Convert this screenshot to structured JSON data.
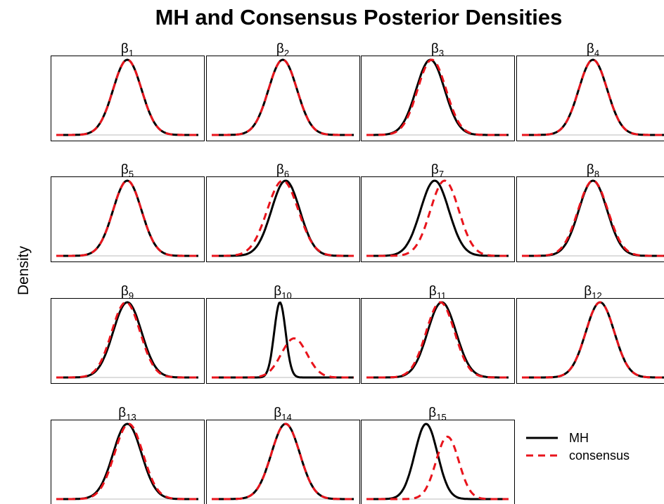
{
  "chart_data": {
    "type": "line",
    "title": "MH and Consensus Posterior Densities",
    "ylabel": "Density",
    "xlabel": "",
    "legend": {
      "position": "bottom-right"
    },
    "styles": {
      "mh": {
        "color": "#000000",
        "dash": "solid"
      },
      "consensus": {
        "color": "#e8141c",
        "dash": "dashed"
      },
      "baseline": "#bbbbbb"
    },
    "panels": [
      {
        "symbol": "β",
        "index": "1",
        "mh": {
          "mean": 0.5,
          "sd": 0.1
        },
        "consensus": {
          "mean": 0.5,
          "sd": 0.1
        }
      },
      {
        "symbol": "β",
        "index": "2",
        "mh": {
          "mean": 0.5,
          "sd": 0.1
        },
        "consensus": {
          "mean": 0.5,
          "sd": 0.1
        }
      },
      {
        "symbol": "β",
        "index": "3",
        "mh": {
          "mean": 0.45,
          "sd": 0.1
        },
        "consensus": {
          "mean": 0.46,
          "sd": 0.1
        }
      },
      {
        "symbol": "β",
        "index": "4",
        "mh": {
          "mean": 0.5,
          "sd": 0.1
        },
        "consensus": {
          "mean": 0.5,
          "sd": 0.1
        }
      },
      {
        "symbol": "β",
        "index": "5",
        "mh": {
          "mean": 0.5,
          "sd": 0.1
        },
        "consensus": {
          "mean": 0.5,
          "sd": 0.1
        }
      },
      {
        "symbol": "β",
        "index": "6",
        "mh": {
          "mean": 0.52,
          "sd": 0.1
        },
        "consensus": {
          "mean": 0.5,
          "sd": 0.11
        }
      },
      {
        "symbol": "β",
        "index": "7",
        "mh": {
          "mean": 0.48,
          "sd": 0.1
        },
        "consensus": {
          "mean": 0.55,
          "sd": 0.1
        }
      },
      {
        "symbol": "β",
        "index": "8",
        "mh": {
          "mean": 0.5,
          "sd": 0.1
        },
        "consensus": {
          "mean": 0.5,
          "sd": 0.105
        }
      },
      {
        "symbol": "β",
        "index": "9",
        "mh": {
          "mean": 0.5,
          "sd": 0.1
        },
        "consensus": {
          "mean": 0.49,
          "sd": 0.1
        }
      },
      {
        "symbol": "β",
        "index": "10",
        "mh": {
          "mean": 0.48,
          "sd": 0.04
        },
        "consensus": {
          "mean": 0.58,
          "sd": 0.09,
          "peak": 0.52
        }
      },
      {
        "symbol": "β",
        "index": "11",
        "mh": {
          "mean": 0.53,
          "sd": 0.1
        },
        "consensus": {
          "mean": 0.52,
          "sd": 0.1
        }
      },
      {
        "symbol": "β",
        "index": "12",
        "mh": {
          "mean": 0.55,
          "sd": 0.1
        },
        "consensus": {
          "mean": 0.55,
          "sd": 0.1
        }
      },
      {
        "symbol": "β",
        "index": "13",
        "mh": {
          "mean": 0.5,
          "sd": 0.1
        },
        "consensus": {
          "mean": 0.51,
          "sd": 0.1
        }
      },
      {
        "symbol": "β",
        "index": "14",
        "mh": {
          "mean": 0.52,
          "sd": 0.1
        },
        "consensus": {
          "mean": 0.52,
          "sd": 0.1
        }
      },
      {
        "symbol": "β",
        "index": "15",
        "mh": {
          "mean": 0.42,
          "sd": 0.08
        },
        "consensus": {
          "mean": 0.57,
          "sd": 0.08,
          "peak": 0.83
        }
      }
    ]
  },
  "legend_items": [
    {
      "key": "mh",
      "label": "MH"
    },
    {
      "key": "consensus",
      "label": "consensus"
    }
  ]
}
